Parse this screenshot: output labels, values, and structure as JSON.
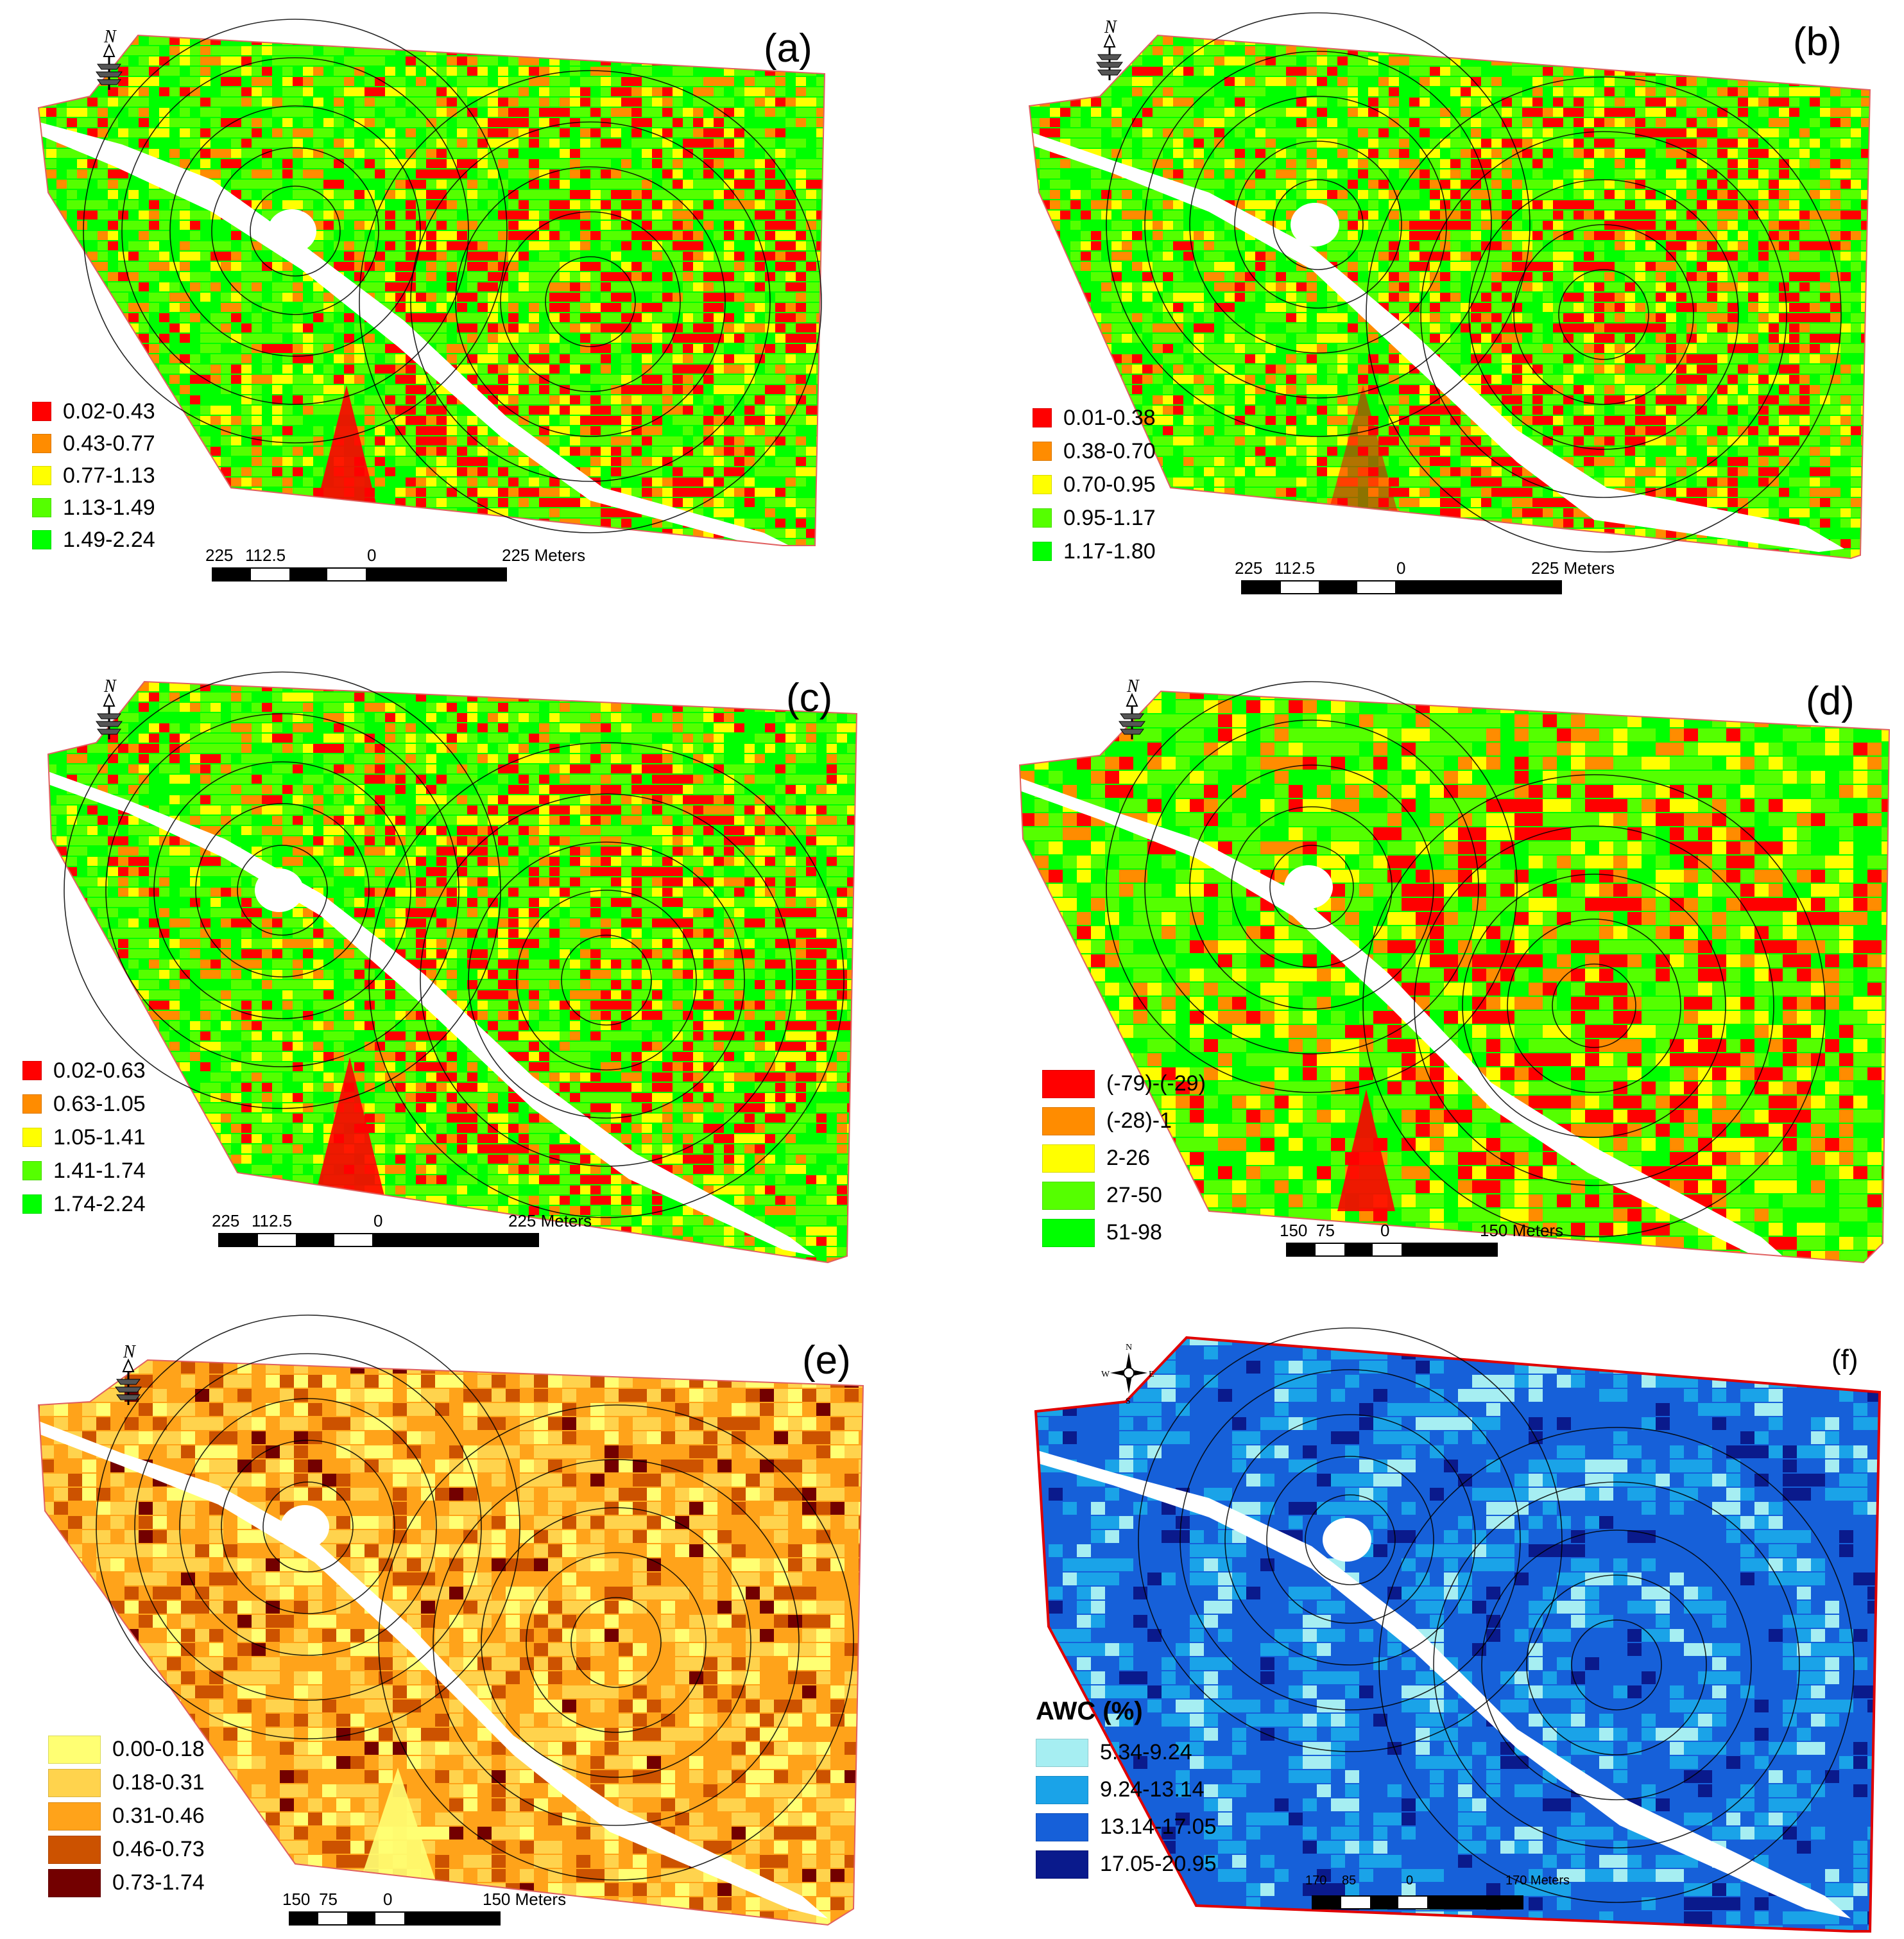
{
  "panels": [
    {
      "id": "a",
      "label": "(a)",
      "legend_title": "",
      "classes": [
        {
          "label": "0.02-0.43",
          "color": "#ff0000"
        },
        {
          "label": "0.43-0.77",
          "color": "#ff8c00"
        },
        {
          "label": "0.77-1.13",
          "color": "#ffff00"
        },
        {
          "label": "1.13-1.49",
          "color": "#55ff00"
        },
        {
          "label": "1.49-2.24",
          "color": "#00ff00"
        }
      ],
      "scale": [
        "225",
        "112.5",
        "0",
        "225 Meters"
      ],
      "compass": "N"
    },
    {
      "id": "b",
      "label": "(b)",
      "legend_title": "",
      "classes": [
        {
          "label": "0.01-0.38",
          "color": "#ff0000"
        },
        {
          "label": "0.38-0.70",
          "color": "#ff8c00"
        },
        {
          "label": "0.70-0.95",
          "color": "#ffff00"
        },
        {
          "label": "0.95-1.17",
          "color": "#55ff00"
        },
        {
          "label": "1.17-1.80",
          "color": "#00ff00"
        }
      ],
      "scale": [
        "225",
        "112.5",
        "0",
        "225 Meters"
      ],
      "compass": "N"
    },
    {
      "id": "c",
      "label": "(c)",
      "legend_title": "",
      "classes": [
        {
          "label": "0.02-0.63",
          "color": "#ff0000"
        },
        {
          "label": "0.63-1.05",
          "color": "#ff8c00"
        },
        {
          "label": "1.05-1.41",
          "color": "#ffff00"
        },
        {
          "label": "1.41-1.74",
          "color": "#55ff00"
        },
        {
          "label": "1.74-2.24",
          "color": "#00ff00"
        }
      ],
      "scale": [
        "225",
        "112.5",
        "0",
        "225 Meters"
      ],
      "compass": "N"
    },
    {
      "id": "d",
      "label": "(d)",
      "legend_title": "",
      "classes": [
        {
          "label": "(-79)-(-29)",
          "color": "#ff0000"
        },
        {
          "label": "(-28)-1",
          "color": "#ff8c00"
        },
        {
          "label": "2-26",
          "color": "#ffff00"
        },
        {
          "label": "27-50",
          "color": "#55ff00"
        },
        {
          "label": "51-98",
          "color": "#00ff00"
        }
      ],
      "scale": [
        "150",
        "75",
        "0",
        "150 Meters"
      ],
      "compass": "N"
    },
    {
      "id": "e",
      "label": "(e)",
      "legend_title": "",
      "classes": [
        {
          "label": "0.00-0.18",
          "color": "#ffff73"
        },
        {
          "label": "0.18-0.31",
          "color": "#ffd34d"
        },
        {
          "label": "0.31-0.46",
          "color": "#ffa31a"
        },
        {
          "label": "0.46-0.73",
          "color": "#cc5200"
        },
        {
          "label": "0.73-1.74",
          "color": "#730000"
        }
      ],
      "scale": [
        "150",
        "75",
        "0",
        "150 Meters"
      ],
      "compass": "N"
    },
    {
      "id": "f",
      "label": "(f)",
      "legend_title": "AWC (%)",
      "classes": [
        {
          "label": "5.34-9.24",
          "color": "#a6eef2"
        },
        {
          "label": "9.24-13.14",
          "color": "#1aa3e8"
        },
        {
          "label": "13.14-17.05",
          "color": "#1660d9"
        },
        {
          "label": "17.05-20.95",
          "color": "#0a1a8c"
        }
      ],
      "scale": [
        "170",
        "85",
        "0",
        "170 Meters"
      ],
      "compass_labels": {
        "n": "N",
        "s": "S",
        "e": "E",
        "w": "W"
      }
    }
  ]
}
